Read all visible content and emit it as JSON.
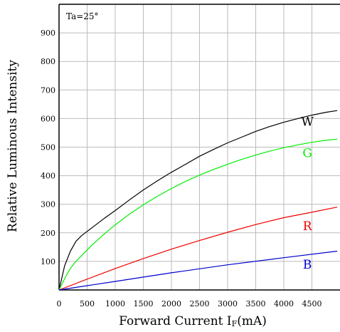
{
  "chart_data": {
    "type": "line",
    "title": "",
    "annotation": "Ta=25°",
    "xlabel_main": "Forward Current I",
    "xlabel_sub": "F",
    "xlabel_unit": "(mA)",
    "ylabel": "Relative Luminous Intensity",
    "xlim": [
      0,
      5000
    ],
    "ylim": [
      0,
      1000
    ],
    "x_ticks": [
      "0",
      "500",
      "1000",
      "1500",
      "2000",
      "2500",
      "3000",
      "3500",
      "4000",
      "4500"
    ],
    "x_tick_values": [
      0,
      500,
      1000,
      1500,
      2000,
      2500,
      3000,
      3500,
      4000,
      4500
    ],
    "y_ticks": [
      "100",
      "200",
      "300",
      "400",
      "500",
      "600",
      "700",
      "800",
      "900"
    ],
    "y_tick_values": [
      100,
      200,
      300,
      400,
      500,
      600,
      700,
      800,
      900
    ],
    "grid": true,
    "legend": "inline labels at right",
    "series": [
      {
        "name": "W",
        "color": "#000000",
        "x": [
          0,
          100,
          200,
          300,
          400,
          600,
          800,
          1000,
          1250,
          1500,
          1750,
          2000,
          2250,
          2500,
          2750,
          3000,
          3250,
          3500,
          3750,
          4000,
          4250,
          4500,
          4750,
          4950
        ],
        "y": [
          0,
          85,
          135,
          170,
          190,
          220,
          250,
          278,
          315,
          350,
          382,
          412,
          440,
          468,
          492,
          515,
          535,
          555,
          572,
          587,
          600,
          612,
          622,
          628
        ]
      },
      {
        "name": "G",
        "color": "#00ee00",
        "x": [
          0,
          100,
          200,
          300,
          400,
          600,
          800,
          1000,
          1250,
          1500,
          1750,
          2000,
          2250,
          2500,
          2750,
          3000,
          3250,
          3500,
          3750,
          4000,
          4250,
          4500,
          4750,
          4950
        ],
        "y": [
          0,
          40,
          75,
          100,
          120,
          160,
          195,
          228,
          265,
          298,
          328,
          355,
          380,
          402,
          422,
          440,
          457,
          472,
          486,
          498,
          508,
          517,
          524,
          528
        ]
      },
      {
        "name": "R",
        "color": "#ee0000",
        "x": [
          0,
          500,
          1000,
          1500,
          2000,
          2500,
          3000,
          3500,
          4000,
          4500,
          4950
        ],
        "y": [
          0,
          38,
          75,
          110,
          143,
          173,
          202,
          229,
          253,
          272,
          290
        ]
      },
      {
        "name": "B",
        "color": "#0000cc",
        "x": [
          0,
          1000,
          2000,
          3000,
          4000,
          4950
        ],
        "y": [
          0,
          30,
          60,
          88,
          113,
          136
        ]
      }
    ]
  }
}
